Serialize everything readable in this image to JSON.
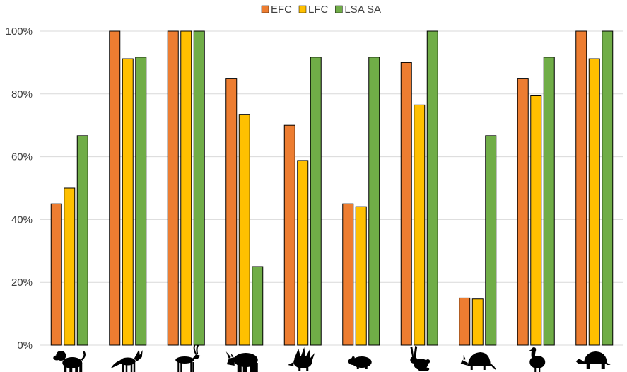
{
  "chart_data": {
    "type": "bar",
    "categories": [
      "baboon",
      "jackal",
      "antelope",
      "rhinoceros",
      "porcupine",
      "rodent",
      "hare",
      "armadillo",
      "guineafowl",
      "tortoise"
    ],
    "series": [
      {
        "name": "EFC",
        "color": "#ED7D31",
        "values": [
          45,
          100,
          100,
          85,
          70,
          45,
          90,
          15,
          85,
          100
        ]
      },
      {
        "name": "LFC",
        "color": "#FFC000",
        "values": [
          50,
          91.2,
          100,
          73.5,
          58.8,
          44.1,
          76.5,
          14.7,
          79.4,
          91.2
        ]
      },
      {
        "name": "LSA SA",
        "color": "#70AD47",
        "values": [
          66.7,
          91.7,
          100,
          25,
          91.7,
          91.7,
          100,
          66.7,
          91.7,
          100
        ]
      }
    ],
    "ylim": [
      0,
      100
    ],
    "yticks": [
      "0%",
      "20%",
      "40%",
      "60%",
      "80%",
      "100%"
    ],
    "legend_position": "top-center",
    "grid": true,
    "category_icons": [
      "baboon-icon",
      "jackal-icon",
      "antelope-icon",
      "rhino-icon",
      "porcupine-icon",
      "rodent-icon",
      "hare-icon",
      "armadillo-icon",
      "guineafowl-icon",
      "tortoise-icon"
    ]
  }
}
